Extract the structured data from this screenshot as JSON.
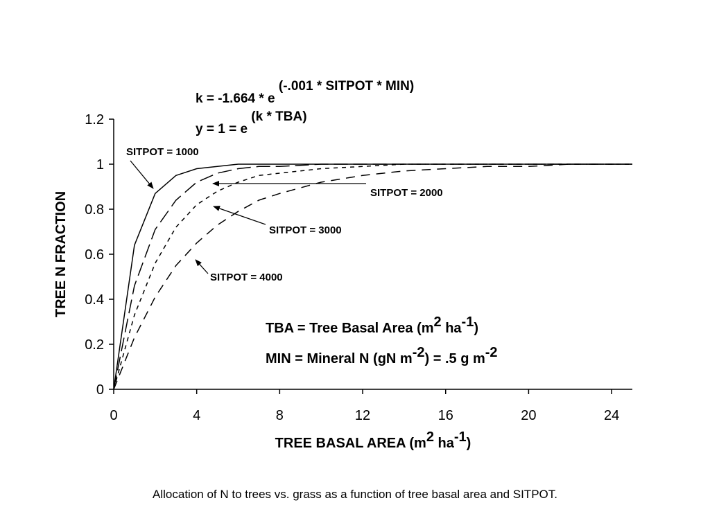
{
  "chart_data": {
    "type": "line",
    "xlabel": "TREE BASAL AREA (m",
    "xlabel_sup": "2",
    "xlabel_mid": " ha",
    "xlabel_sup2": "-1",
    "xlabel_end": ")",
    "ylabel": "TREE N FRACTION",
    "xlim": [
      0,
      25
    ],
    "ylim": [
      0,
      1.2
    ],
    "x_ticks": [
      "0",
      "4",
      "8",
      "12",
      "16",
      "20",
      "24"
    ],
    "y_ticks": [
      "0",
      "0.2",
      "0.4",
      "0.6",
      "0.8",
      "1",
      "1.2"
    ],
    "x_tick_values": [
      0,
      4,
      8,
      12,
      16,
      20,
      24
    ],
    "y_tick_values": [
      0,
      0.2,
      0.4,
      0.6,
      0.8,
      1.0,
      1.2
    ],
    "grid": false,
    "x": [
      0,
      1,
      2,
      3,
      4,
      5,
      6,
      7,
      8,
      10,
      12,
      14,
      16,
      18,
      20,
      22,
      25
    ],
    "series": [
      {
        "name": "SITPOT = 1000",
        "style": "solid",
        "values": [
          0,
          0.64,
          0.87,
          0.95,
          0.98,
          0.99,
          1.0,
          1.0,
          1.0,
          1.0,
          1.0,
          1.0,
          1.0,
          1.0,
          1.0,
          1.0,
          1.0
        ]
      },
      {
        "name": "SITPOT = 2000",
        "style": "long-dash",
        "values": [
          0,
          0.46,
          0.71,
          0.84,
          0.92,
          0.96,
          0.98,
          0.99,
          0.99,
          1.0,
          1.0,
          1.0,
          1.0,
          1.0,
          1.0,
          1.0,
          1.0
        ]
      },
      {
        "name": "SITPOT = 3000",
        "style": "short-dash",
        "values": [
          0,
          0.33,
          0.56,
          0.72,
          0.82,
          0.88,
          0.92,
          0.95,
          0.96,
          0.98,
          0.99,
          1.0,
          1.0,
          1.0,
          1.0,
          1.0,
          1.0
        ]
      },
      {
        "name": "SITPOT = 4000",
        "style": "medium-dash",
        "values": [
          0,
          0.23,
          0.41,
          0.55,
          0.65,
          0.73,
          0.79,
          0.84,
          0.87,
          0.92,
          0.95,
          0.97,
          0.98,
          0.99,
          0.99,
          1.0,
          1.0
        ]
      }
    ],
    "formulas": {
      "k_main": "k =  -1.664 * e",
      "k_sup": "(-.001 * SITPOT * MIN)",
      "y_main": "y = 1 = e",
      "y_sup": "(k * TBA)"
    },
    "legend_text": {
      "tba_main": "TBA = Tree Basal Area (m",
      "tba_sup1": "2",
      "tba_mid": " ha",
      "tba_sup2": "-1",
      "tba_end": ")",
      "min_main": "MIN = Mineral N (gN m",
      "min_sup1": "-2",
      "min_mid": ") = .5 g m",
      "min_sup2": "-2"
    }
  },
  "caption": "Allocation of N to trees vs. grass as a function of tree basal area and SITPOT."
}
